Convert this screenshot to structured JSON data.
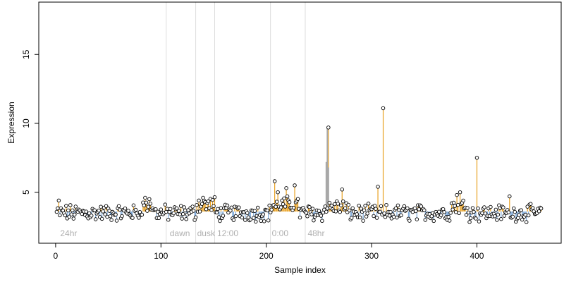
{
  "chart_data": {
    "type": "scatter",
    "xlabel": "Sample index",
    "ylabel": "Expression",
    "xlim": [
      -16,
      480
    ],
    "ylim": [
      1.3,
      18.8
    ],
    "x_ticks": [
      0,
      100,
      200,
      300,
      400
    ],
    "y_ticks": [
      5,
      10,
      15
    ],
    "baseline": 3.6,
    "n_points": 461,
    "colors": {
      "point_fill": "#ffffff",
      "point_stroke": "#000000",
      "above_baseline": "#e8a020",
      "below_baseline": "#7aa7d8",
      "highlight": "#a8a8a8",
      "separator": "#dcdcdc",
      "condition_label": "#b0b0b0"
    },
    "condition_separators": [
      105,
      133,
      151,
      204,
      237
    ],
    "condition_labels": [
      {
        "x": 3,
        "text": "24hr"
      },
      {
        "x": 107,
        "text": "dawn"
      },
      {
        "x": 133,
        "text": "dusk"
      },
      {
        "x": 152,
        "text": "12:00"
      },
      {
        "x": 204,
        "text": "0:00"
      },
      {
        "x": 238,
        "text": "48hr"
      }
    ],
    "highlight_region": {
      "x_start": 257,
      "x_end": 259,
      "values": [
        7.2,
        9.7,
        6.8
      ]
    },
    "notable_points": [
      {
        "x": 2,
        "y": 4.4
      },
      {
        "x": 84,
        "y": 4.6
      },
      {
        "x": 88,
        "y": 4.5
      },
      {
        "x": 135,
        "y": 4.4
      },
      {
        "x": 139,
        "y": 4.6
      },
      {
        "x": 207,
        "y": 5.8
      },
      {
        "x": 210,
        "y": 5.0
      },
      {
        "x": 218,
        "y": 5.3
      },
      {
        "x": 226,
        "y": 5.5
      },
      {
        "x": 258,
        "y": 9.7
      },
      {
        "x": 271,
        "y": 5.2
      },
      {
        "x": 305,
        "y": 5.4
      },
      {
        "x": 310,
        "y": 11.1
      },
      {
        "x": 380,
        "y": 4.8
      },
      {
        "x": 383,
        "y": 5.0
      },
      {
        "x": 399,
        "y": 7.5
      },
      {
        "x": 430,
        "y": 4.7
      },
      {
        "x": 461,
        "y": 4.2
      }
    ]
  }
}
